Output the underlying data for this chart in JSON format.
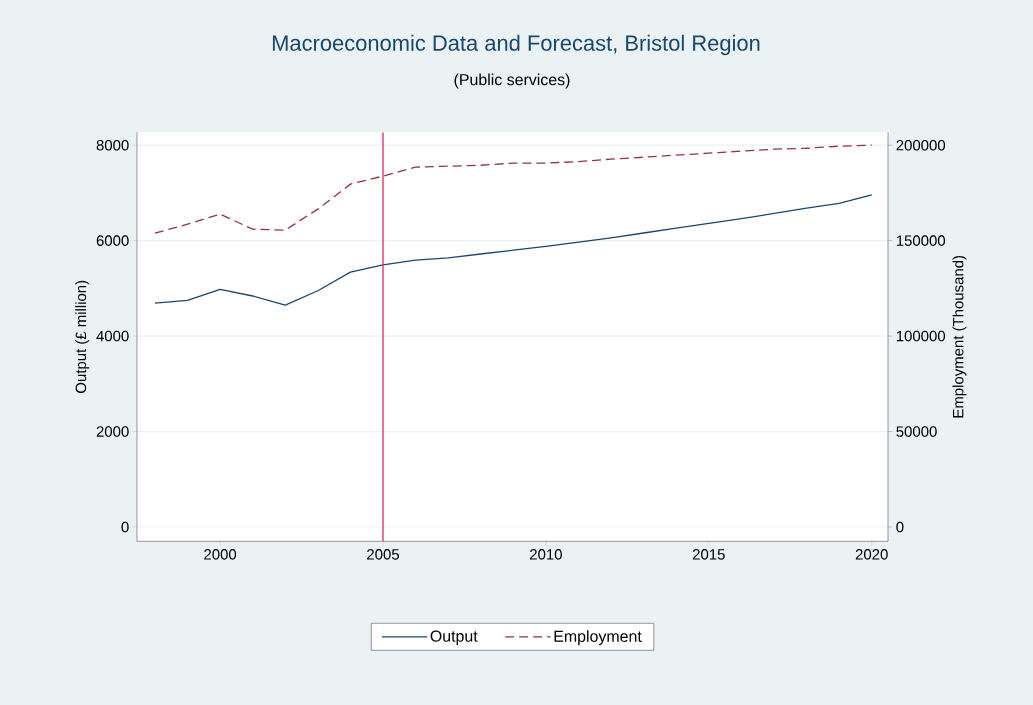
{
  "chart_data": {
    "type": "line",
    "title": "Macroeconomic Data and Forecast, Bristol Region",
    "subtitle": "(Public services)",
    "ylabel": "Output (£ million)",
    "y2label": "Employment (Thousand)",
    "x": [
      1998,
      1999,
      2000,
      2001,
      2002,
      2003,
      2004,
      2005,
      2006,
      2007,
      2008,
      2009,
      2010,
      2011,
      2012,
      2013,
      2014,
      2015,
      2016,
      2017,
      2018,
      2019,
      2020
    ],
    "series": [
      {
        "name": "Output",
        "color": "#1a476f",
        "line_style": "solid",
        "values": [
          4690,
          4750,
          4980,
          4840,
          4650,
          4950,
          5340,
          5490,
          5590,
          5640,
          5720,
          5800,
          5880,
          5970,
          6060,
          6160,
          6260,
          6360,
          6460,
          6570,
          6680,
          6780,
          6960
        ]
      },
      {
        "name": "Employment",
        "color": "#90353b",
        "line_style": "dashed",
        "axis": "y2",
        "values": [
          153900,
          158600,
          163900,
          156000,
          155500,
          166500,
          179600,
          183800,
          188500,
          189000,
          189500,
          190600,
          190600,
          191400,
          192700,
          193700,
          194800,
          195800,
          196900,
          197900,
          198400,
          199500,
          200000
        ]
      }
    ],
    "xlim": [
      1997.45,
      2020.5
    ],
    "xticks": [
      2000,
      2005,
      2010,
      2015,
      2020
    ],
    "ylim": [
      -300,
      8270
    ],
    "yticks": [
      0,
      2000,
      4000,
      6000,
      8000
    ],
    "y2lim": [
      -7500,
      206750
    ],
    "y2ticks": [
      0,
      50000,
      100000,
      150000,
      200000
    ],
    "ref_lines": [
      {
        "axis": "x",
        "value": 2005,
        "color": "#e0245e"
      }
    ],
    "grid": "y",
    "legend": "bottom",
    "marker": "none"
  }
}
